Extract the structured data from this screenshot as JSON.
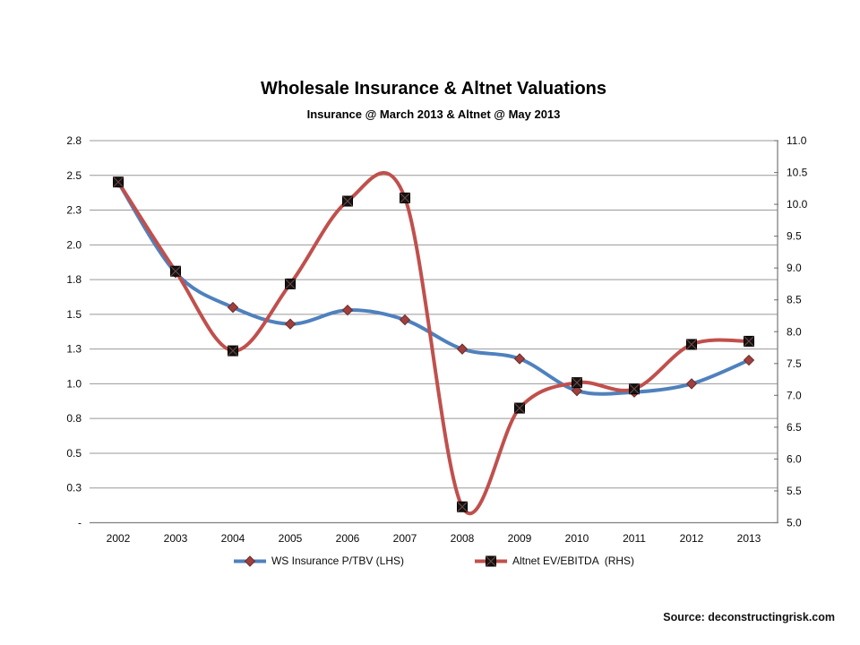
{
  "chart_data": {
    "type": "line",
    "title": "Wholesale Insurance & Altnet Valuations",
    "subtitle": "Insurance @ March 2013 & Altnet @ May 2013",
    "categories": [
      "2002",
      "2003",
      "2004",
      "2005",
      "2006",
      "2007",
      "2008",
      "2009",
      "2010",
      "2011",
      "2012",
      "2013"
    ],
    "series": [
      {
        "name": "WS Insurance P/TBV (LHS)",
        "axis": "left",
        "line_color": "#4F81BD",
        "marker": "diamond",
        "marker_fill": "#9E413E",
        "marker_stroke": "#6E2B29",
        "values": [
          2.45,
          1.8,
          1.55,
          1.43,
          1.53,
          1.46,
          1.25,
          1.18,
          0.95,
          0.94,
          1.0,
          1.17
        ]
      },
      {
        "name": "Altnet EV/EBITDA  (RHS)",
        "axis": "right",
        "line_color": "#C0504D",
        "marker": "x-square",
        "marker_fill": "#141414",
        "marker_stroke": "#000000",
        "values": [
          10.35,
          8.95,
          7.7,
          8.75,
          10.05,
          10.1,
          5.25,
          6.8,
          7.2,
          7.1,
          7.8,
          7.85
        ]
      }
    ],
    "left_axis": {
      "min": 0,
      "max": 2.75,
      "step": 0.25,
      "labels": [
        "-",
        "0.3",
        "0.5",
        "0.8",
        "1.0",
        "1.3",
        "1.5",
        "1.8",
        "2.0",
        "2.3",
        "2.5",
        "2.8"
      ]
    },
    "right_axis": {
      "min": 5.0,
      "max": 11.0,
      "step": 0.5,
      "labels": [
        "5.0",
        "5.5",
        "6.0",
        "6.5",
        "7.0",
        "7.5",
        "8.0",
        "8.5",
        "9.0",
        "9.5",
        "10.0",
        "10.5",
        "11.0"
      ]
    },
    "grid": "horizontal",
    "legend_position": "bottom",
    "colors": {
      "gridline": "#999999",
      "axis_line": "#808080",
      "text": "#0a0a0a"
    },
    "source": "Source: deconstructingrisk.com"
  }
}
